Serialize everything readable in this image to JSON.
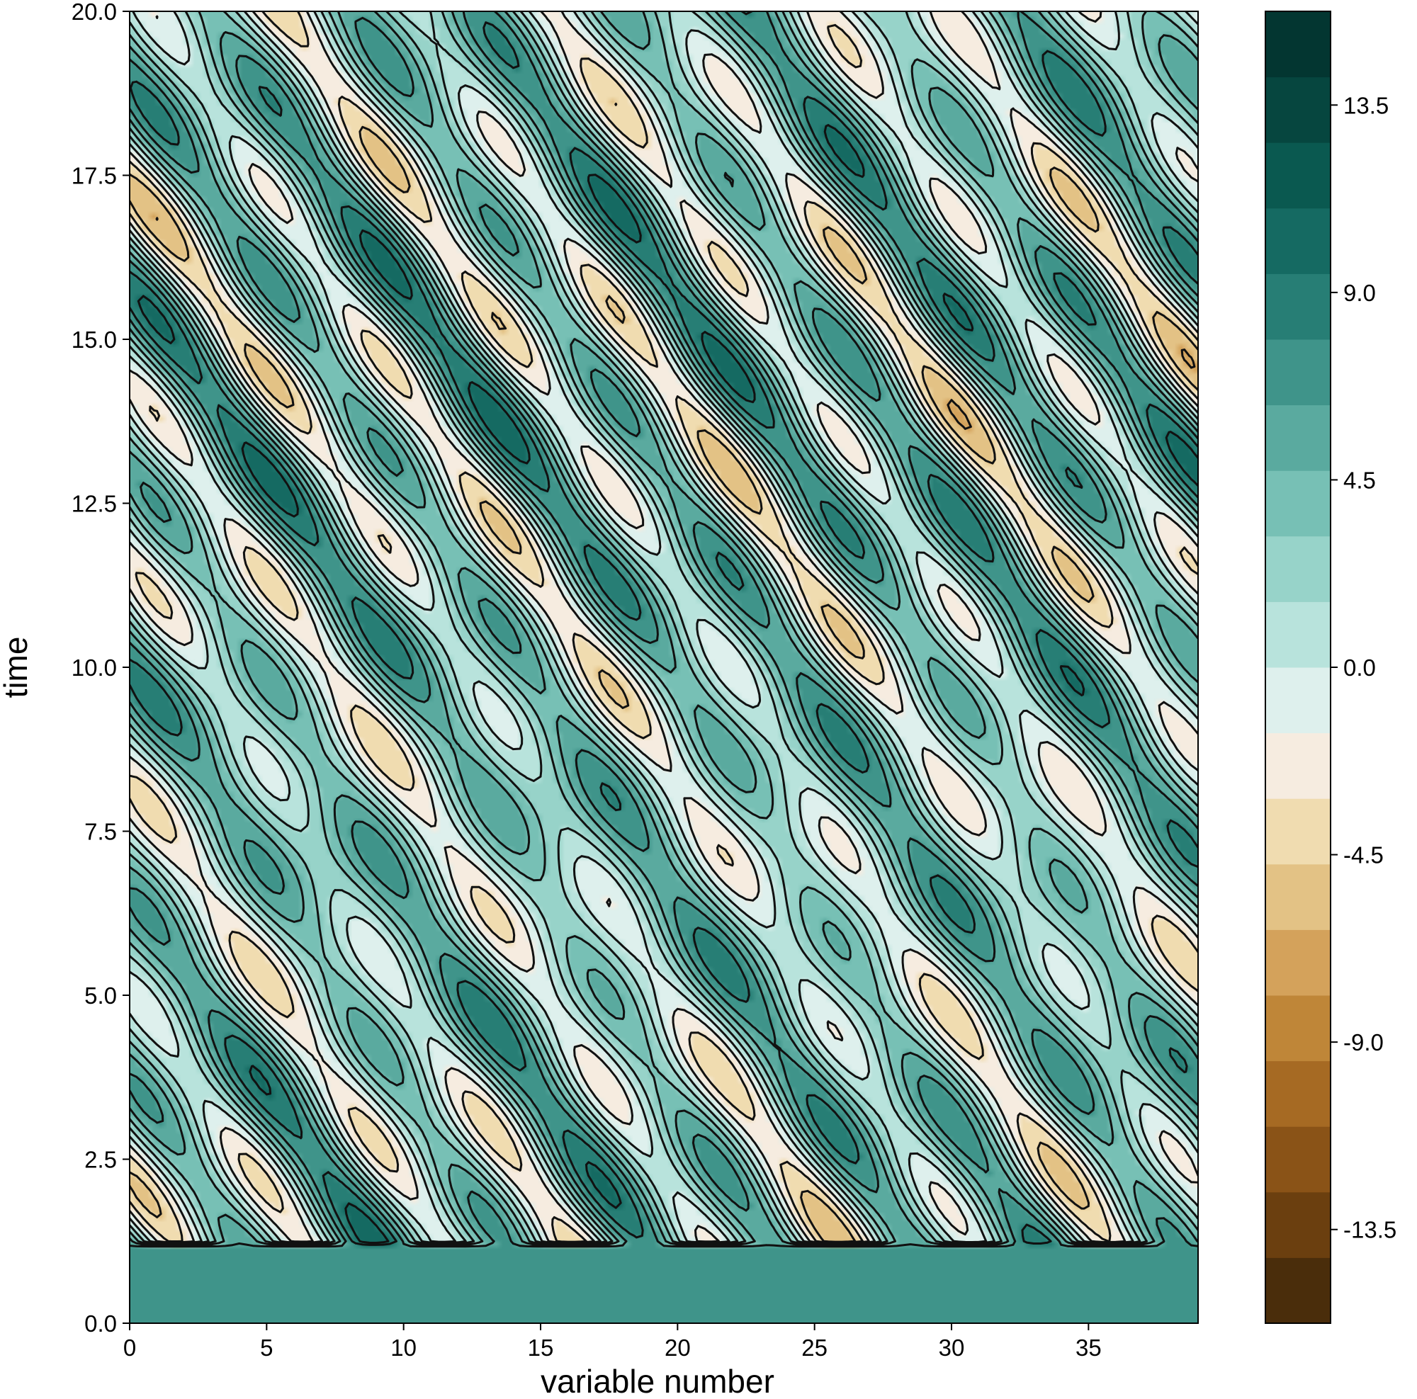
{
  "chart_data": {
    "type": "heatmap",
    "style": "filled contour with black contour lines (Hovmöller diagram)",
    "xlabel": "variable number",
    "ylabel": "time",
    "xlim": [
      0,
      39
    ],
    "ylim": [
      0.0,
      20.0
    ],
    "x_ticks": [
      "0",
      "5",
      "10",
      "15",
      "20",
      "25",
      "30",
      "35"
    ],
    "x_tick_values": [
      0,
      5,
      10,
      15,
      20,
      25,
      30,
      35
    ],
    "y_ticks": [
      "0.0",
      "2.5",
      "5.0",
      "7.5",
      "10.0",
      "12.5",
      "15.0",
      "17.5",
      "20.0"
    ],
    "y_tick_values": [
      0.0,
      2.5,
      5.0,
      7.5,
      10.0,
      12.5,
      15.0,
      17.5,
      20.0
    ],
    "pattern": {
      "initial_state_value": 6.5,
      "transition_time": 1.2,
      "band_slope_variables_per_time": -1.6,
      "band_wavenumber": 8
    },
    "colorbar": {
      "ticks": [
        "13.5",
        "9.0",
        "4.5",
        "0.0",
        "-4.5",
        "-9.0",
        "-13.5"
      ],
      "tick_values": [
        13.5,
        9.0,
        4.5,
        0.0,
        -4.5,
        -9.0,
        -13.5
      ],
      "vmin": -15.75,
      "vmax": 15.75,
      "levels": 14,
      "colormap": "BrBG",
      "colors_low_to_high": [
        "#4a2d0b",
        "#6b3f0f",
        "#8a5317",
        "#a66a23",
        "#bf8638",
        "#d4a25b",
        "#e3c285",
        "#f0dcb0",
        "#f6ece0",
        "#def0ed",
        "#b8e3dc",
        "#97d3c9",
        "#77c0b5",
        "#5aaa9f",
        "#3f948a",
        "#277e75",
        "#156a62",
        "#0a5950",
        "#06463f",
        "#033631"
      ]
    }
  }
}
